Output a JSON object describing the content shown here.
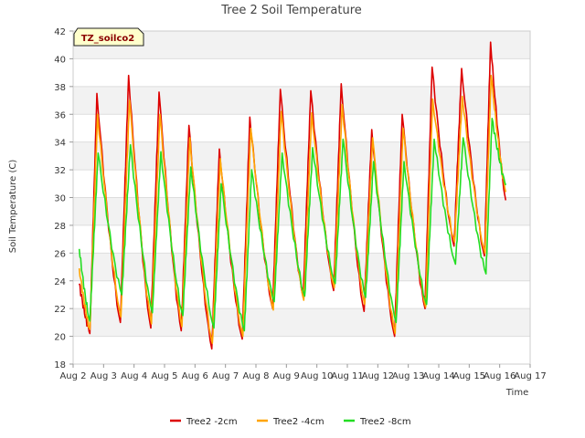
{
  "chart_data": {
    "type": "line",
    "title": "Tree 2 Soil Temperature",
    "xlabel": "Time",
    "ylabel": "Soil Temperature (C)",
    "annotation": "TZ_soilco2",
    "xlim": [
      0,
      15
    ],
    "ylim": [
      18,
      42
    ],
    "yticks": [
      18,
      20,
      22,
      24,
      26,
      28,
      30,
      32,
      34,
      36,
      38,
      40,
      42
    ],
    "xticks": [
      "Aug 2",
      "Aug 3",
      "Aug 4",
      "Aug 5",
      "Aug 6",
      "Aug 7",
      "Aug 8",
      "Aug 9",
      "Aug 10",
      "Aug 11",
      "Aug 12",
      "Aug 13",
      "Aug 14",
      "Aug 15",
      "Aug 16",
      "Aug 17"
    ],
    "grid": true,
    "legend_position": "bottom-center",
    "series": [
      {
        "name": "Tree2 -2cm",
        "color": "#dd0000",
        "points": [
          [
            0.2,
            23.8
          ],
          [
            0.55,
            20.2
          ],
          [
            0.78,
            37.5
          ],
          [
            1.55,
            21.0
          ],
          [
            1.82,
            38.8
          ],
          [
            2.55,
            20.6
          ],
          [
            2.82,
            37.6
          ],
          [
            3.55,
            20.4
          ],
          [
            3.8,
            35.2
          ],
          [
            4.55,
            19.1
          ],
          [
            4.8,
            33.5
          ],
          [
            5.55,
            19.8
          ],
          [
            5.8,
            35.8
          ],
          [
            6.55,
            22.0
          ],
          [
            6.8,
            37.8
          ],
          [
            7.55,
            22.8
          ],
          [
            7.8,
            37.7
          ],
          [
            8.55,
            23.3
          ],
          [
            8.8,
            38.2
          ],
          [
            9.55,
            21.8
          ],
          [
            9.8,
            34.9
          ],
          [
            10.55,
            20.0
          ],
          [
            10.8,
            36.0
          ],
          [
            11.55,
            22.0
          ],
          [
            11.78,
            39.4
          ],
          [
            12.5,
            26.5
          ],
          [
            12.75,
            39.3
          ],
          [
            13.5,
            25.8
          ],
          [
            13.7,
            41.2
          ],
          [
            14.2,
            29.8
          ]
        ]
      },
      {
        "name": "Tree2 -4cm",
        "color": "#ffa500",
        "points": [
          [
            0.2,
            24.9
          ],
          [
            0.55,
            20.5
          ],
          [
            0.8,
            36.0
          ],
          [
            1.57,
            21.4
          ],
          [
            1.85,
            37.0
          ],
          [
            2.57,
            20.9
          ],
          [
            2.85,
            36.0
          ],
          [
            3.57,
            20.7
          ],
          [
            3.83,
            34.3
          ],
          [
            4.57,
            19.5
          ],
          [
            4.83,
            32.8
          ],
          [
            5.57,
            20.0
          ],
          [
            5.83,
            35.0
          ],
          [
            6.57,
            21.9
          ],
          [
            6.83,
            36.2
          ],
          [
            7.57,
            22.6
          ],
          [
            7.83,
            36.1
          ],
          [
            8.57,
            23.5
          ],
          [
            8.83,
            36.7
          ],
          [
            9.57,
            22.3
          ],
          [
            9.83,
            34.3
          ],
          [
            10.57,
            20.2
          ],
          [
            10.83,
            35.0
          ],
          [
            11.57,
            22.1
          ],
          [
            11.8,
            37.1
          ],
          [
            12.52,
            26.8
          ],
          [
            12.77,
            37.3
          ],
          [
            13.52,
            26.0
          ],
          [
            13.72,
            38.8
          ],
          [
            14.2,
            30.4
          ]
        ]
      },
      {
        "name": "Tree2 -8cm",
        "color": "#22dd22",
        "points": [
          [
            0.2,
            26.3
          ],
          [
            0.55,
            21.1
          ],
          [
            0.82,
            33.2
          ],
          [
            1.6,
            23.0
          ],
          [
            1.88,
            33.8
          ],
          [
            2.6,
            21.7
          ],
          [
            2.88,
            33.3
          ],
          [
            3.6,
            21.5
          ],
          [
            3.86,
            32.2
          ],
          [
            4.62,
            20.6
          ],
          [
            4.86,
            31.0
          ],
          [
            5.62,
            20.4
          ],
          [
            5.86,
            32.0
          ],
          [
            6.6,
            22.5
          ],
          [
            6.86,
            33.2
          ],
          [
            7.6,
            22.9
          ],
          [
            7.86,
            33.6
          ],
          [
            8.6,
            23.8
          ],
          [
            8.86,
            34.2
          ],
          [
            9.6,
            22.8
          ],
          [
            9.86,
            32.6
          ],
          [
            10.6,
            21.0
          ],
          [
            10.86,
            32.6
          ],
          [
            11.6,
            22.3
          ],
          [
            11.85,
            34.2
          ],
          [
            12.55,
            25.2
          ],
          [
            12.8,
            34.3
          ],
          [
            13.55,
            24.5
          ],
          [
            13.75,
            35.7
          ],
          [
            14.2,
            30.9
          ]
        ]
      }
    ]
  }
}
